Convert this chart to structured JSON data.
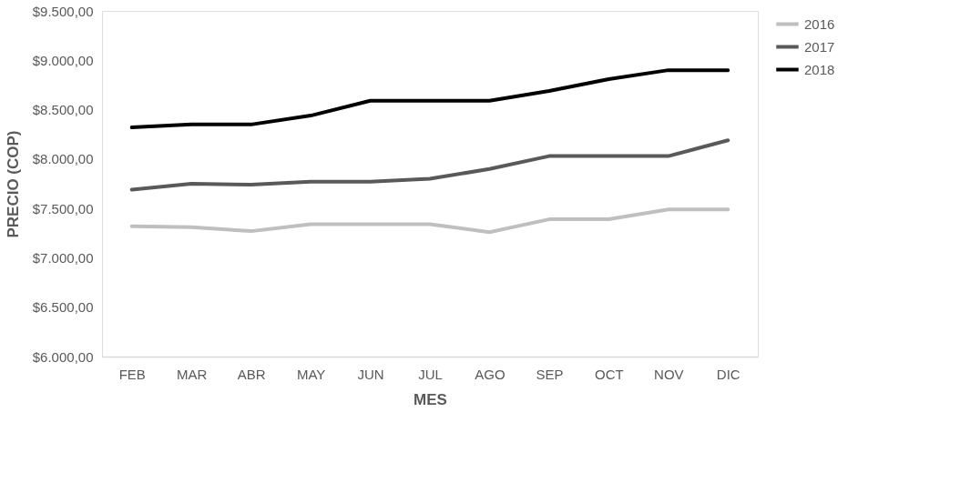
{
  "chart_data": {
    "type": "line",
    "xlabel": "MES",
    "ylabel": "PRECIO (COP)",
    "categories": [
      "FEB",
      "MAR",
      "ABR",
      "MAY",
      "JUN",
      "JUL",
      "AGO",
      "SEP",
      "OCT",
      "NOV",
      "DIC"
    ],
    "series": [
      {
        "name": "2016",
        "color": "#bfbfbf",
        "values": [
          7320,
          7310,
          7270,
          7340,
          7340,
          7340,
          7260,
          7390,
          7390,
          7490,
          7490
        ]
      },
      {
        "name": "2017",
        "color": "#595959",
        "values": [
          7690,
          7750,
          7740,
          7770,
          7770,
          7800,
          7900,
          8030,
          8030,
          8030,
          8190
        ]
      },
      {
        "name": "2018",
        "color": "#000000",
        "values": [
          8320,
          8350,
          8350,
          8440,
          8590,
          8590,
          8590,
          8690,
          8810,
          8900,
          8900
        ]
      }
    ],
    "ylim": [
      6000,
      9500
    ],
    "yticks": [
      {
        "value": 6000,
        "label": "$6.000,00"
      },
      {
        "value": 6500,
        "label": "$6.500,00"
      },
      {
        "value": 7000,
        "label": "$7.000,00"
      },
      {
        "value": 7500,
        "label": "$7.500,00"
      },
      {
        "value": 8000,
        "label": "$8.000,00"
      },
      {
        "value": 8500,
        "label": "$8.500,00"
      },
      {
        "value": 9000,
        "label": "$9.000,00"
      },
      {
        "value": 9500,
        "label": "$9.500,00"
      }
    ],
    "grid": false,
    "legend": "right",
    "marker": "none",
    "line_style": "solid"
  }
}
